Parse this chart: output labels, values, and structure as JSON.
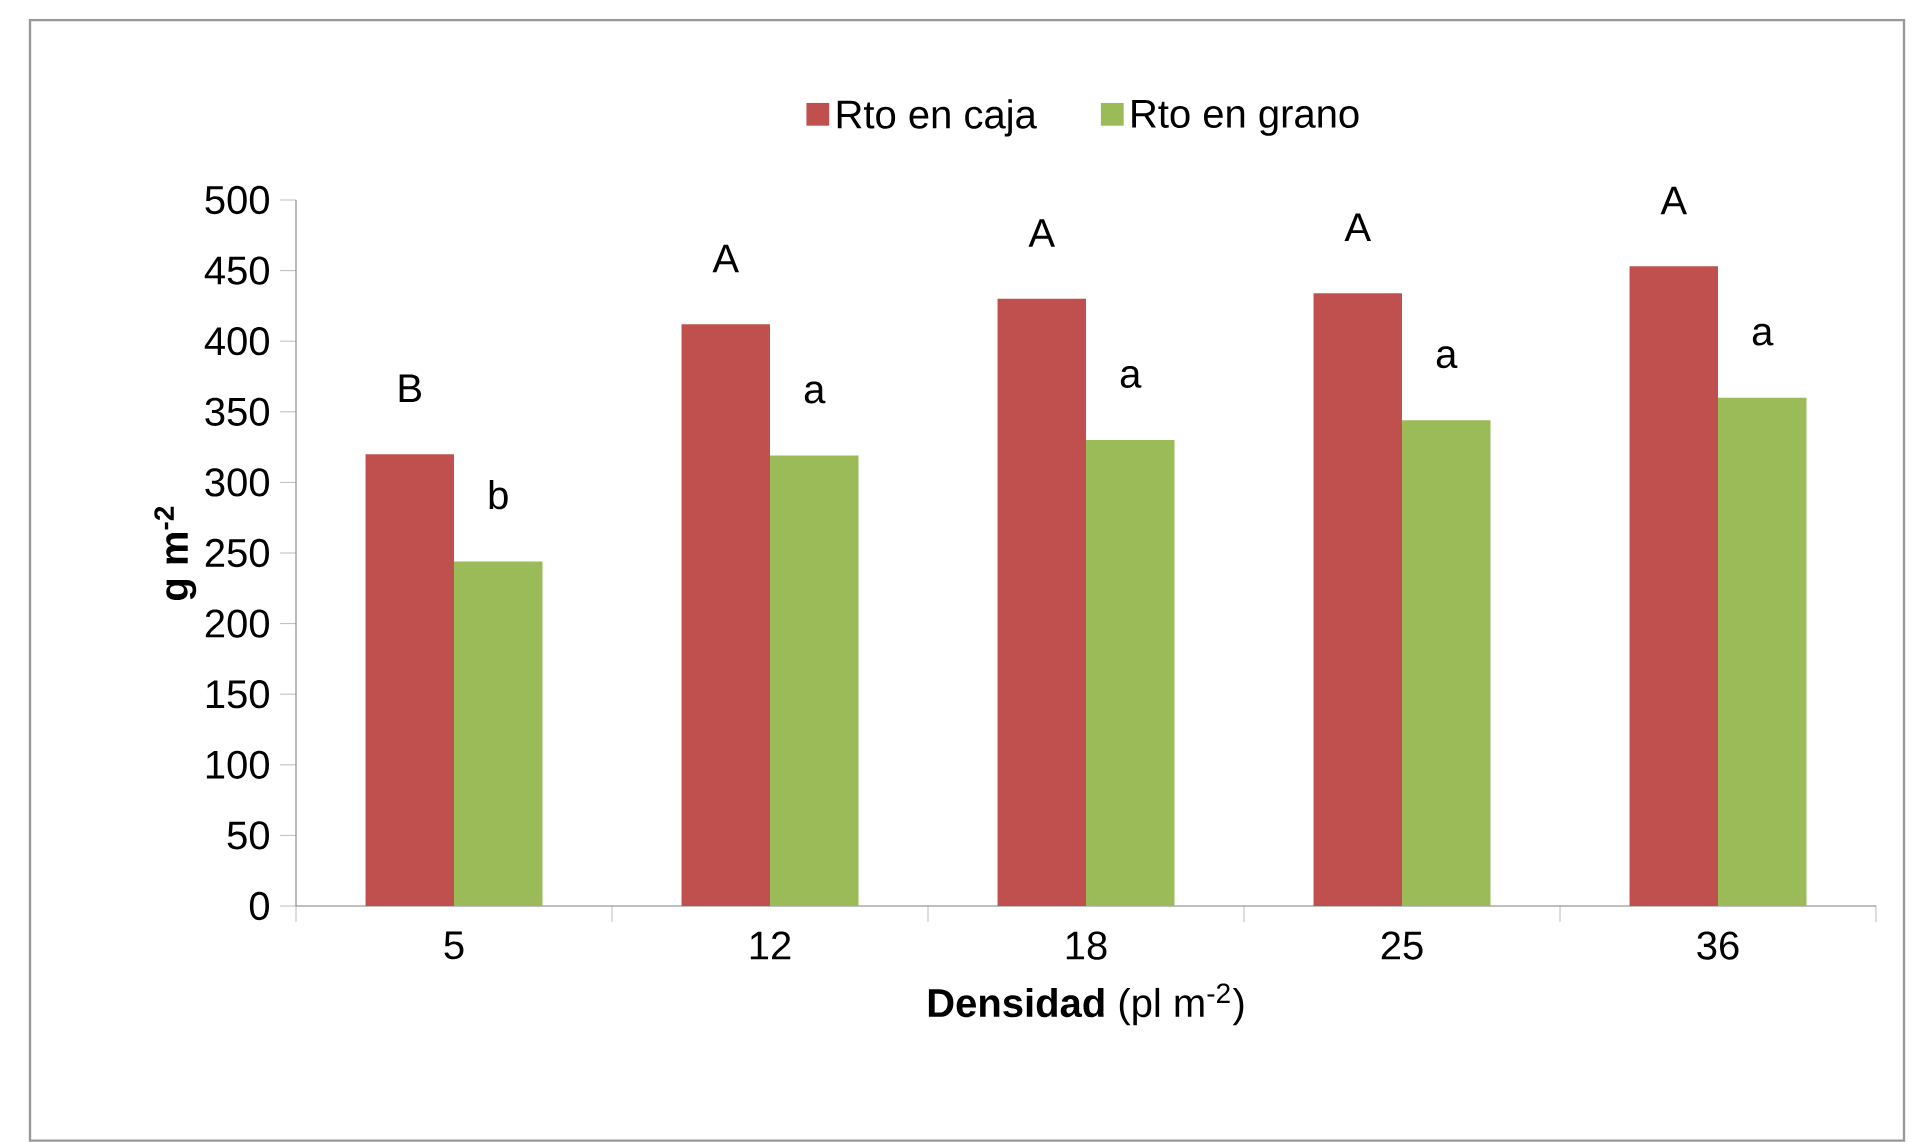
{
  "chart_data": {
    "type": "bar",
    "categories": [
      "5",
      "12",
      "18",
      "25",
      "36"
    ],
    "series": [
      {
        "name": "Rto en caja",
        "color": "#c0504d",
        "values": [
          320,
          412,
          430,
          434,
          453
        ]
      },
      {
        "name": "Rto en grano",
        "color": "#9bbb59",
        "values": [
          244,
          319,
          330,
          344,
          360
        ]
      }
    ],
    "xlabel": "**Densidad** (pl m$^{-2}$)",
    "ylabel": "g m$^{-2}$",
    "ylim": [
      0,
      500
    ],
    "yticks": [
      0,
      50,
      100,
      150,
      200,
      250,
      300,
      350,
      400,
      450,
      500
    ],
    "legend": "top",
    "grid": false,
    "annotations": [
      {
        "text": "B",
        "x": "5",
        "y": 320
      },
      {
        "text": "b",
        "x": "5",
        "y": 244
      },
      {
        "text": "A",
        "x": "12",
        "y": 412
      },
      {
        "text": "a",
        "x": "12",
        "y": 319
      },
      {
        "text": "A",
        "x": "18",
        "y": 430
      },
      {
        "text": "a",
        "x": "18",
        "y": 330
      },
      {
        "text": "A",
        "x": "25",
        "y": 434
      },
      {
        "text": "a",
        "x": "25",
        "y": 344
      },
      {
        "text": "A",
        "x": "36",
        "y": 453
      },
      {
        "text": "a",
        "x": "36",
        "y": 360
      }
    ]
  }
}
